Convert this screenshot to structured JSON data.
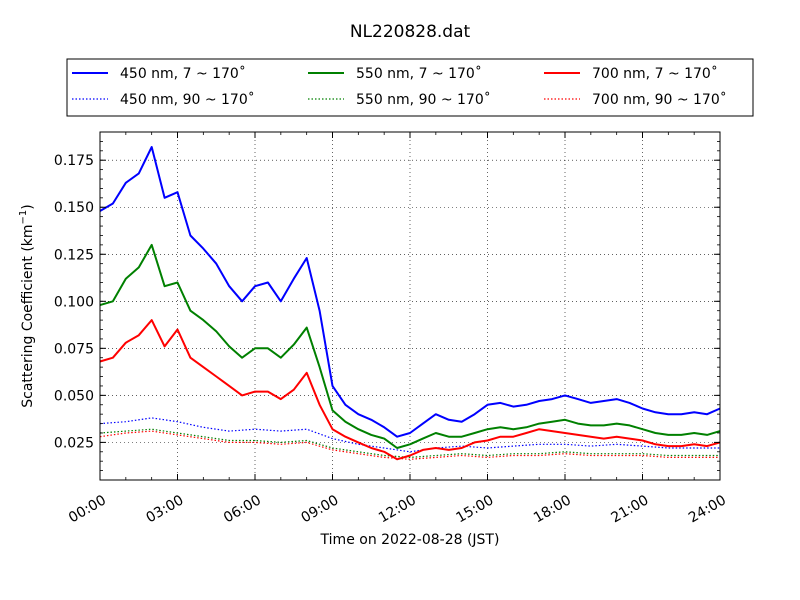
{
  "chart_data": {
    "type": "line",
    "title": "NL220828.dat",
    "xlabel": "Time on 2022-08-28 (JST)",
    "ylabel": "Scattering Coefficient (km",
    "ylabel_sup": "−1",
    "ylabel_close": ")",
    "xlim": [
      0,
      24
    ],
    "ylim": [
      0.005,
      0.19
    ],
    "xticks": [
      0,
      3,
      6,
      9,
      12,
      15,
      18,
      21,
      24
    ],
    "xtick_labels": [
      "00:00",
      "03:00",
      "06:00",
      "09:00",
      "12:00",
      "15:00",
      "18:00",
      "21:00",
      "24:00"
    ],
    "yticks": [
      0.025,
      0.05,
      0.075,
      0.1,
      0.125,
      0.15,
      0.175
    ],
    "ytick_labels": [
      "0.025",
      "0.050",
      "0.075",
      "0.100",
      "0.125",
      "0.150",
      "0.175"
    ],
    "grid": true,
    "legend_placement": "top, above plot, 3 columns",
    "series": [
      {
        "name": "450 nm, 7 ~ 170˚",
        "color": "#0000ff",
        "style": "solid",
        "x": [
          0,
          0.5,
          1,
          1.5,
          2,
          2.5,
          3,
          3.5,
          4,
          4.5,
          5,
          5.5,
          6,
          6.5,
          7,
          7.5,
          8,
          8.5,
          9,
          9.5,
          10,
          10.5,
          11,
          11.5,
          12,
          12.5,
          13,
          13.5,
          14,
          14.5,
          15,
          15.5,
          16,
          16.5,
          17,
          17.5,
          18,
          18.5,
          19,
          19.5,
          20,
          20.5,
          21,
          21.5,
          22,
          22.5,
          23,
          23.5,
          24
        ],
        "y": [
          0.148,
          0.152,
          0.163,
          0.168,
          0.182,
          0.155,
          0.158,
          0.135,
          0.128,
          0.12,
          0.108,
          0.1,
          0.108,
          0.11,
          0.1,
          0.112,
          0.123,
          0.095,
          0.055,
          0.045,
          0.04,
          0.037,
          0.033,
          0.028,
          0.03,
          0.035,
          0.04,
          0.037,
          0.036,
          0.04,
          0.045,
          0.046,
          0.044,
          0.045,
          0.047,
          0.048,
          0.05,
          0.048,
          0.046,
          0.047,
          0.048,
          0.046,
          0.043,
          0.041,
          0.04,
          0.04,
          0.041,
          0.04,
          0.043
        ]
      },
      {
        "name": "550 nm, 7 ~ 170˚",
        "color": "#008000",
        "style": "solid",
        "x": [
          0,
          0.5,
          1,
          1.5,
          2,
          2.5,
          3,
          3.5,
          4,
          4.5,
          5,
          5.5,
          6,
          6.5,
          7,
          7.5,
          8,
          8.5,
          9,
          9.5,
          10,
          10.5,
          11,
          11.5,
          12,
          12.5,
          13,
          13.5,
          14,
          14.5,
          15,
          15.5,
          16,
          16.5,
          17,
          17.5,
          18,
          18.5,
          19,
          19.5,
          20,
          20.5,
          21,
          21.5,
          22,
          22.5,
          23,
          23.5,
          24
        ],
        "y": [
          0.098,
          0.1,
          0.112,
          0.118,
          0.13,
          0.108,
          0.11,
          0.095,
          0.09,
          0.084,
          0.076,
          0.07,
          0.075,
          0.075,
          0.07,
          0.077,
          0.086,
          0.065,
          0.042,
          0.036,
          0.032,
          0.029,
          0.027,
          0.022,
          0.024,
          0.027,
          0.03,
          0.028,
          0.028,
          0.03,
          0.032,
          0.033,
          0.032,
          0.033,
          0.035,
          0.036,
          0.037,
          0.035,
          0.034,
          0.034,
          0.035,
          0.034,
          0.032,
          0.03,
          0.029,
          0.029,
          0.03,
          0.029,
          0.031
        ]
      },
      {
        "name": "700 nm, 7 ~ 170˚",
        "color": "#ff0000",
        "style": "solid",
        "x": [
          0,
          0.5,
          1,
          1.5,
          2,
          2.5,
          3,
          3.5,
          4,
          4.5,
          5,
          5.5,
          6,
          6.5,
          7,
          7.5,
          8,
          8.5,
          9,
          9.5,
          10,
          10.5,
          11,
          11.5,
          12,
          12.5,
          13,
          13.5,
          14,
          14.5,
          15,
          15.5,
          16,
          16.5,
          17,
          17.5,
          18,
          18.5,
          19,
          19.5,
          20,
          20.5,
          21,
          21.5,
          22,
          22.5,
          23,
          23.5,
          24
        ],
        "y": [
          0.068,
          0.07,
          0.078,
          0.082,
          0.09,
          0.076,
          0.085,
          0.07,
          0.065,
          0.06,
          0.055,
          0.05,
          0.052,
          0.052,
          0.048,
          0.053,
          0.062,
          0.045,
          0.032,
          0.028,
          0.025,
          0.022,
          0.02,
          0.016,
          0.018,
          0.021,
          0.022,
          0.021,
          0.022,
          0.025,
          0.026,
          0.028,
          0.028,
          0.03,
          0.032,
          0.031,
          0.03,
          0.029,
          0.028,
          0.027,
          0.028,
          0.027,
          0.026,
          0.024,
          0.023,
          0.023,
          0.024,
          0.023,
          0.025
        ]
      },
      {
        "name": "450 nm, 90 ~ 170˚",
        "color": "#0000ff",
        "style": "dotted",
        "x": [
          0,
          1,
          2,
          3,
          4,
          5,
          6,
          7,
          8,
          9,
          10,
          11,
          12,
          13,
          14,
          15,
          16,
          17,
          18,
          19,
          20,
          21,
          22,
          23,
          24
        ],
        "y": [
          0.035,
          0.036,
          0.038,
          0.036,
          0.033,
          0.031,
          0.032,
          0.031,
          0.032,
          0.027,
          0.024,
          0.022,
          0.02,
          0.022,
          0.023,
          0.022,
          0.023,
          0.024,
          0.024,
          0.023,
          0.024,
          0.023,
          0.022,
          0.022,
          0.022
        ]
      },
      {
        "name": "550 nm, 90 ~ 170˚",
        "color": "#008000",
        "style": "dotted",
        "x": [
          0,
          1,
          2,
          3,
          4,
          5,
          6,
          7,
          8,
          9,
          10,
          11,
          12,
          13,
          14,
          15,
          16,
          17,
          18,
          19,
          20,
          21,
          22,
          23,
          24
        ],
        "y": [
          0.03,
          0.031,
          0.032,
          0.03,
          0.028,
          0.026,
          0.026,
          0.025,
          0.026,
          0.022,
          0.02,
          0.018,
          0.017,
          0.018,
          0.019,
          0.018,
          0.019,
          0.019,
          0.02,
          0.019,
          0.019,
          0.019,
          0.018,
          0.018,
          0.018
        ]
      },
      {
        "name": "700 nm, 90 ~ 170˚",
        "color": "#ff0000",
        "style": "dotted",
        "x": [
          0,
          1,
          2,
          3,
          4,
          5,
          6,
          7,
          8,
          9,
          10,
          11,
          12,
          13,
          14,
          15,
          16,
          17,
          18,
          19,
          20,
          21,
          22,
          23,
          24
        ],
        "y": [
          0.028,
          0.03,
          0.031,
          0.029,
          0.027,
          0.025,
          0.025,
          0.024,
          0.025,
          0.021,
          0.019,
          0.017,
          0.016,
          0.017,
          0.018,
          0.017,
          0.018,
          0.018,
          0.019,
          0.018,
          0.018,
          0.018,
          0.017,
          0.017,
          0.017
        ]
      }
    ]
  }
}
